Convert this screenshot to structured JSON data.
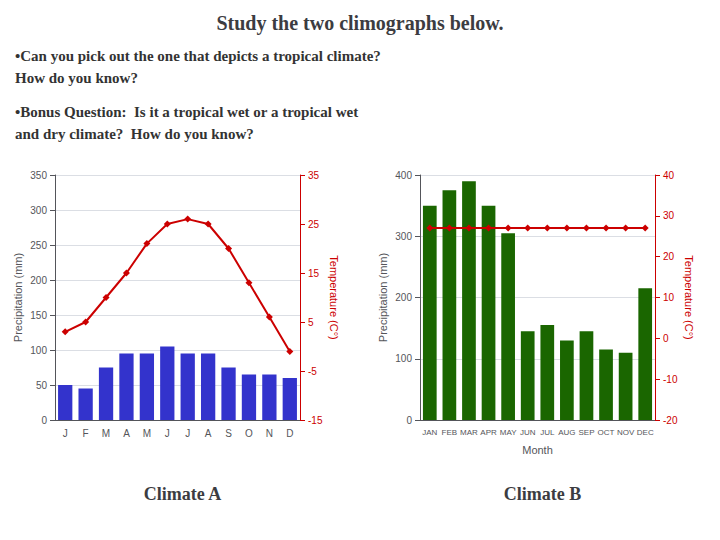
{
  "title": "Study the two climographs below.",
  "annotations": [
    "•Can you pick out the one that depicts a tropical climate?",
    "How do you know?",
    "•Bonus Question:  Is it a tropical wet or a tropical wet",
    "and dry climate?  How do you know?"
  ],
  "chart_data": [
    {
      "type": "bar",
      "title": "Climate A",
      "categories": [
        "J",
        "F",
        "M",
        "A",
        "M",
        "J",
        "J",
        "A",
        "S",
        "O",
        "N",
        "D"
      ],
      "ylabel": "Precipitation (mm)",
      "y2label": "Temperature (C°)",
      "ylim": [
        0,
        350
      ],
      "yticks": [
        0,
        50,
        100,
        150,
        200,
        250,
        300,
        350
      ],
      "y2lim": [
        -15,
        35
      ],
      "y2ticks": [
        -15,
        -5,
        5,
        15,
        25,
        35
      ],
      "grid": true,
      "series": [
        {
          "type": "bar",
          "color": "#3333cc",
          "values": [
            50,
            45,
            75,
            95,
            95,
            105,
            95,
            95,
            75,
            65,
            65,
            60
          ]
        },
        {
          "type": "line",
          "axis": "y2",
          "color": "#cc0000",
          "marker": "diamond",
          "values": [
            3,
            5,
            10,
            15,
            21,
            25,
            26,
            25,
            20,
            13,
            6,
            -1
          ]
        }
      ]
    },
    {
      "type": "bar",
      "title": "Climate B",
      "categories": [
        "JAN",
        "FEB",
        "MAR",
        "APR",
        "MAY",
        "JUN",
        "JUL",
        "AUG",
        "SEP",
        "OCT",
        "NOV",
        "DEC"
      ],
      "xlabel": "Month",
      "ylabel": "Precipitation (mm)",
      "y2label": "Temperature (C°)",
      "ylim": [
        0,
        400
      ],
      "yticks": [
        0,
        100,
        200,
        300,
        400
      ],
      "y2lim": [
        -20,
        40
      ],
      "y2ticks": [
        -20,
        -10,
        0,
        10,
        20,
        30,
        40
      ],
      "grid": true,
      "series": [
        {
          "type": "bar",
          "color": "#1a6600",
          "values": [
            350,
            375,
            390,
            350,
            305,
            145,
            155,
            130,
            145,
            115,
            110,
            215
          ]
        },
        {
          "type": "line",
          "axis": "y2",
          "color": "#cc0000",
          "marker": "diamond",
          "values": [
            27,
            27,
            27,
            27,
            27,
            27,
            27,
            27,
            27,
            27,
            27,
            27
          ]
        }
      ]
    }
  ]
}
